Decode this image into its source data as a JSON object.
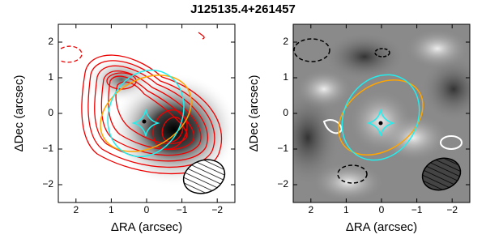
{
  "title": "J125135.4+261457",
  "chart_data": [
    {
      "type": "image",
      "xlabel": "ΔRA (arcsec)",
      "ylabel": "ΔDec (arcsec)",
      "xlim": [
        2.5,
        -2.5
      ],
      "ylim": [
        -2.5,
        2.5
      ],
      "xticks": [
        2,
        1,
        0,
        {
          "value": -1,
          "label": "−1"
        },
        {
          "value": -2,
          "label": "−2"
        }
      ],
      "yticks": [
        {
          "value": -2,
          "label": "−2"
        },
        {
          "value": -1,
          "label": "−1"
        },
        0,
        1,
        2
      ]
    },
    {
      "type": "image",
      "xlabel": "ΔRA (arcsec)",
      "ylabel": "ΔDec (arcsec)",
      "xlim": [
        2.5,
        -2.5
      ],
      "ylim": [
        -2.5,
        2.5
      ],
      "xticks": [
        2,
        1,
        0,
        {
          "value": -1,
          "label": "−1"
        },
        {
          "value": -2,
          "label": "−2"
        }
      ],
      "yticks": [
        {
          "value": -2,
          "label": "−2"
        },
        {
          "value": -1,
          "label": "−1"
        },
        0,
        1,
        2
      ]
    }
  ]
}
